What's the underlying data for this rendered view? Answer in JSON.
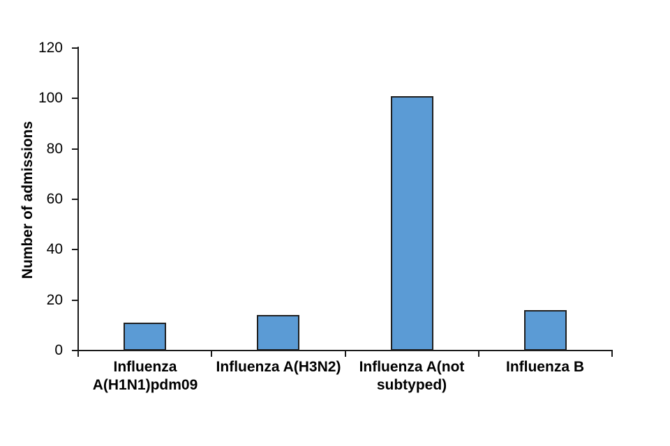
{
  "chart_data": {
    "type": "bar",
    "title": "",
    "categories": [
      "Influenza A(H1N1)pdm09",
      "Influenza A(H3N2)",
      "Influenza A(not subtyped)",
      "Influenza B"
    ],
    "category_label_lines": [
      [
        "Influenza",
        "A(H1N1)pdm09"
      ],
      [
        "Influenza A(H3N2)"
      ],
      [
        "Influenza A(not",
        "subtyped)"
      ],
      [
        "Influenza B"
      ]
    ],
    "values": [
      11,
      14,
      101,
      16
    ],
    "xlabel": "",
    "ylabel": "Number of admissions",
    "ylim": [
      0,
      120
    ],
    "yticks": [
      0,
      20,
      40,
      60,
      80,
      100,
      120
    ],
    "grid": false,
    "legend_position": "none",
    "colors": {
      "bar_fill": "#5B9BD5",
      "bar_border": "#1f1f1f",
      "axis": "#1a1a1a",
      "text": "#000000",
      "background": "#FFFFFF"
    }
  }
}
